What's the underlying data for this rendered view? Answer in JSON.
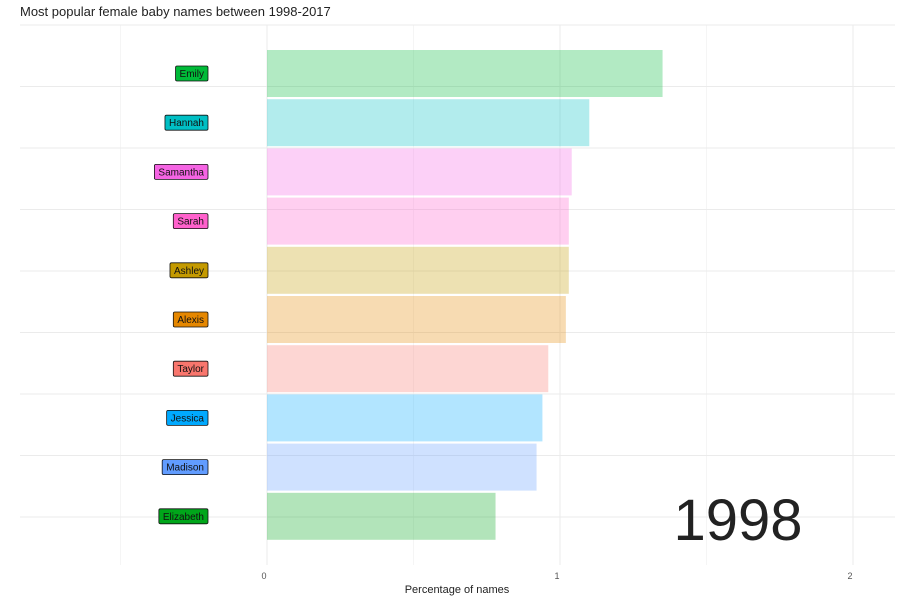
{
  "title": "Most popular female baby names between 1998-2017",
  "chart_data": {
    "type": "bar",
    "orientation": "horizontal",
    "title": "Most popular female baby names between 1998-2017",
    "xlabel": "Percentage of names",
    "ylabel": "",
    "xlim": [
      -0.5,
      2.1
    ],
    "x_ticks": [
      "0",
      "1",
      "2"
    ],
    "x_tick_values": [
      0,
      1,
      2
    ],
    "grid": true,
    "legend": "none",
    "year": "1998",
    "categories": [
      "Emily",
      "Hannah",
      "Samantha",
      "Sarah",
      "Ashley",
      "Alexis",
      "Taylor",
      "Jessica",
      "Madison",
      "Elizabeth"
    ],
    "values": [
      1.35,
      1.1,
      1.04,
      1.03,
      1.03,
      1.02,
      0.96,
      0.94,
      0.92,
      0.78
    ],
    "colors": [
      "#00BA38",
      "#00BFC4",
      "#F564E3",
      "#FF61CC",
      "#C49A00",
      "#E58700",
      "#F8766D",
      "#00A9FF",
      "#619CFF",
      "#00A61A"
    ]
  }
}
